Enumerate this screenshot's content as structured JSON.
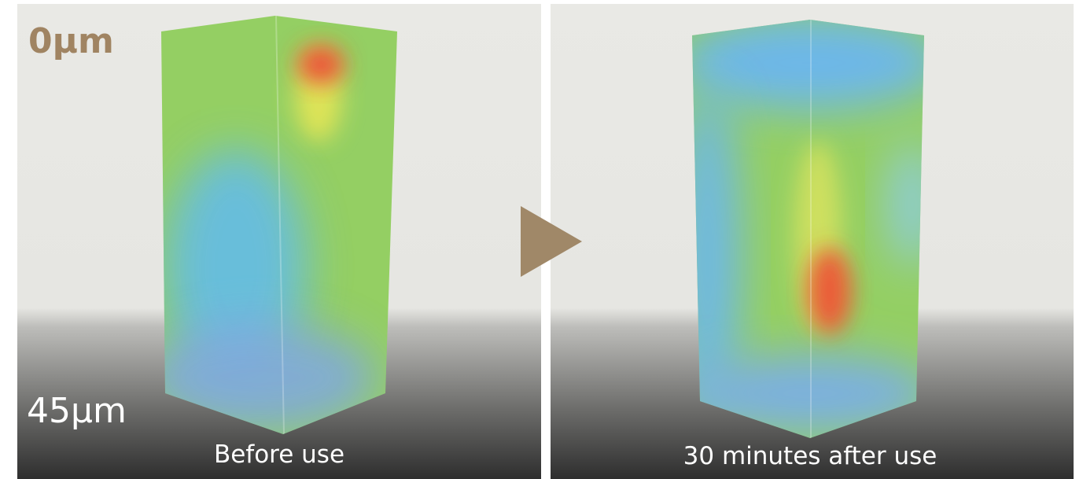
{
  "depth_labels": {
    "top": "0μm",
    "bottom": "45μm"
  },
  "panels": [
    {
      "caption": "Before use"
    },
    {
      "caption": "30 minutes after use"
    }
  ]
}
